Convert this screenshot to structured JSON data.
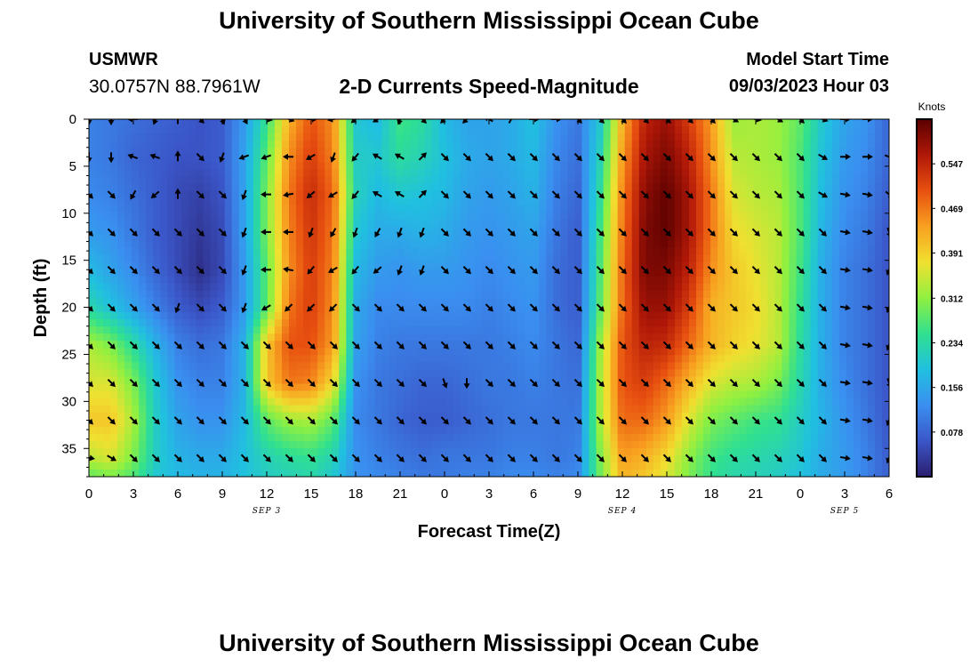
{
  "header": {
    "title": "University of Southern Mississippi Ocean Cube",
    "station": "USMWR",
    "coords": "30.0757N  88.7961W",
    "subtitle": "2-D Currents Speed-Magnitude",
    "start_label": "Model Start Time",
    "start_value": "09/03/2023 Hour 03"
  },
  "footer": {
    "title": "University of Southern Mississippi Ocean Cube"
  },
  "chart_data": {
    "type": "heatmap",
    "title": "2-D Currents Speed-Magnitude",
    "xlabel": "Forecast Time(Z)",
    "ylabel": "Depth (ft)",
    "x_range_hours": [
      0,
      54
    ],
    "x_ticks": [
      {
        "hour": 0,
        "label": "0"
      },
      {
        "hour": 3,
        "label": "3"
      },
      {
        "hour": 6,
        "label": "6"
      },
      {
        "hour": 9,
        "label": "9"
      },
      {
        "hour": 12,
        "label": "12"
      },
      {
        "hour": 15,
        "label": "15"
      },
      {
        "hour": 18,
        "label": "18"
      },
      {
        "hour": 21,
        "label": "21"
      },
      {
        "hour": 24,
        "label": "0"
      },
      {
        "hour": 27,
        "label": "3"
      },
      {
        "hour": 30,
        "label": "6"
      },
      {
        "hour": 33,
        "label": "9"
      },
      {
        "hour": 36,
        "label": "12"
      },
      {
        "hour": 39,
        "label": "15"
      },
      {
        "hour": 42,
        "label": "18"
      },
      {
        "hour": 45,
        "label": "21"
      },
      {
        "hour": 48,
        "label": "0"
      },
      {
        "hour": 51,
        "label": "3"
      },
      {
        "hour": 54,
        "label": "6"
      }
    ],
    "date_labels": [
      {
        "hour": 12,
        "label": "SEP 3"
      },
      {
        "hour": 36,
        "label": "SEP 4"
      },
      {
        "hour": 51,
        "label": "SEP 5"
      }
    ],
    "y_range": [
      0,
      38
    ],
    "y_ticks": [
      0,
      5,
      10,
      15,
      20,
      25,
      30,
      35
    ],
    "colorbar": {
      "unit": "Knots",
      "range": [
        0.0,
        0.625
      ],
      "ticks": [
        "0.078",
        "0.156",
        "0.234",
        "0.312",
        "0.391",
        "0.469",
        "0.547"
      ],
      "colors": [
        "#2a1e6e",
        "#3b56c8",
        "#3a8ff0",
        "#20c0e0",
        "#30e090",
        "#90f040",
        "#f0e030",
        "#f8a020",
        "#e85010",
        "#b01808",
        "#5a0000"
      ]
    },
    "vector_hours": [
      0,
      3,
      6,
      9,
      12,
      15,
      18,
      21,
      24,
      27,
      30,
      33,
      36,
      39,
      42,
      45,
      48,
      51,
      54
    ],
    "vector_depths": [
      0,
      4,
      8,
      12,
      16,
      20,
      24,
      28,
      32,
      36
    ],
    "anchor_hours": [
      0,
      1.5,
      3,
      4.5,
      6,
      7.5,
      9,
      10.5,
      12,
      13.5,
      15,
      16.5,
      18,
      19.5,
      21,
      22.5,
      24,
      25.5,
      27,
      28.5,
      30,
      31.5,
      33,
      34.5,
      36,
      37.5,
      39,
      40.5,
      42,
      43.5,
      45,
      46.5,
      48,
      49.5,
      51,
      52.5,
      54
    ],
    "anchor_depths": [
      0,
      4,
      8,
      12,
      16,
      20,
      24,
      28,
      32,
      36,
      38
    ],
    "speed_knots": [
      [
        0.11,
        0.1,
        0.09,
        0.08,
        0.07,
        0.06,
        0.07,
        0.14,
        0.25,
        0.42,
        0.5,
        0.45,
        0.2,
        0.18,
        0.26,
        0.24,
        0.18,
        0.15,
        0.15,
        0.16,
        0.19,
        0.13,
        0.1,
        0.2,
        0.42,
        0.55,
        0.58,
        0.52,
        0.44,
        0.32,
        0.33,
        0.32,
        0.28,
        0.2,
        0.15,
        0.13,
        0.08
      ],
      [
        0.11,
        0.1,
        0.08,
        0.07,
        0.06,
        0.06,
        0.07,
        0.15,
        0.28,
        0.45,
        0.52,
        0.46,
        0.21,
        0.2,
        0.24,
        0.22,
        0.19,
        0.16,
        0.15,
        0.16,
        0.18,
        0.12,
        0.09,
        0.22,
        0.44,
        0.57,
        0.6,
        0.55,
        0.45,
        0.34,
        0.33,
        0.32,
        0.27,
        0.19,
        0.14,
        0.12,
        0.08
      ],
      [
        0.12,
        0.11,
        0.09,
        0.07,
        0.05,
        0.04,
        0.06,
        0.15,
        0.3,
        0.47,
        0.54,
        0.48,
        0.22,
        0.18,
        0.2,
        0.19,
        0.18,
        0.15,
        0.14,
        0.15,
        0.17,
        0.11,
        0.08,
        0.24,
        0.46,
        0.59,
        0.62,
        0.57,
        0.47,
        0.36,
        0.34,
        0.33,
        0.27,
        0.18,
        0.13,
        0.11,
        0.07
      ],
      [
        0.14,
        0.13,
        0.1,
        0.07,
        0.05,
        0.03,
        0.05,
        0.15,
        0.3,
        0.46,
        0.53,
        0.47,
        0.2,
        0.16,
        0.16,
        0.17,
        0.16,
        0.14,
        0.13,
        0.14,
        0.15,
        0.1,
        0.07,
        0.26,
        0.47,
        0.6,
        0.62,
        0.57,
        0.47,
        0.38,
        0.36,
        0.34,
        0.27,
        0.17,
        0.12,
        0.1,
        0.06
      ],
      [
        0.18,
        0.15,
        0.12,
        0.08,
        0.05,
        0.02,
        0.05,
        0.14,
        0.28,
        0.45,
        0.52,
        0.46,
        0.18,
        0.14,
        0.13,
        0.14,
        0.14,
        0.13,
        0.12,
        0.13,
        0.14,
        0.09,
        0.07,
        0.27,
        0.48,
        0.6,
        0.6,
        0.55,
        0.45,
        0.4,
        0.37,
        0.34,
        0.26,
        0.16,
        0.11,
        0.09,
        0.06
      ],
      [
        0.23,
        0.19,
        0.15,
        0.11,
        0.07,
        0.05,
        0.07,
        0.14,
        0.28,
        0.47,
        0.52,
        0.45,
        0.16,
        0.12,
        0.12,
        0.12,
        0.12,
        0.12,
        0.11,
        0.12,
        0.13,
        0.09,
        0.07,
        0.28,
        0.48,
        0.58,
        0.58,
        0.52,
        0.42,
        0.4,
        0.38,
        0.34,
        0.25,
        0.16,
        0.11,
        0.09,
        0.06
      ],
      [
        0.33,
        0.3,
        0.24,
        0.17,
        0.11,
        0.09,
        0.1,
        0.17,
        0.4,
        0.5,
        0.5,
        0.44,
        0.15,
        0.11,
        0.1,
        0.1,
        0.1,
        0.1,
        0.1,
        0.11,
        0.12,
        0.1,
        0.08,
        0.32,
        0.5,
        0.55,
        0.54,
        0.48,
        0.42,
        0.39,
        0.37,
        0.34,
        0.24,
        0.16,
        0.11,
        0.09,
        0.06
      ],
      [
        0.36,
        0.36,
        0.3,
        0.2,
        0.13,
        0.11,
        0.11,
        0.17,
        0.4,
        0.47,
        0.46,
        0.38,
        0.13,
        0.1,
        0.09,
        0.08,
        0.08,
        0.09,
        0.1,
        0.1,
        0.11,
        0.1,
        0.09,
        0.33,
        0.5,
        0.52,
        0.48,
        0.42,
        0.36,
        0.34,
        0.33,
        0.3,
        0.23,
        0.16,
        0.12,
        0.09,
        0.06
      ],
      [
        0.4,
        0.4,
        0.33,
        0.21,
        0.15,
        0.13,
        0.13,
        0.18,
        0.28,
        0.32,
        0.33,
        0.28,
        0.12,
        0.1,
        0.08,
        0.07,
        0.07,
        0.08,
        0.09,
        0.1,
        0.1,
        0.1,
        0.1,
        0.33,
        0.48,
        0.48,
        0.44,
        0.36,
        0.3,
        0.28,
        0.26,
        0.25,
        0.21,
        0.17,
        0.13,
        0.1,
        0.06
      ],
      [
        0.34,
        0.36,
        0.3,
        0.21,
        0.17,
        0.16,
        0.16,
        0.19,
        0.22,
        0.24,
        0.25,
        0.22,
        0.13,
        0.11,
        0.1,
        0.09,
        0.1,
        0.1,
        0.1,
        0.11,
        0.11,
        0.1,
        0.11,
        0.3,
        0.44,
        0.42,
        0.38,
        0.31,
        0.26,
        0.24,
        0.23,
        0.22,
        0.2,
        0.16,
        0.14,
        0.11,
        0.07
      ],
      [
        0.28,
        0.3,
        0.27,
        0.2,
        0.18,
        0.17,
        0.17,
        0.19,
        0.21,
        0.22,
        0.23,
        0.2,
        0.13,
        0.12,
        0.11,
        0.1,
        0.1,
        0.11,
        0.11,
        0.12,
        0.12,
        0.11,
        0.12,
        0.29,
        0.42,
        0.4,
        0.36,
        0.3,
        0.25,
        0.23,
        0.22,
        0.21,
        0.19,
        0.16,
        0.14,
        0.11,
        0.07
      ]
    ],
    "vectors_deg": [
      [
        180,
        180,
        270,
        200,
        0,
        135,
        160,
        150,
        100,
        110,
        90,
        260,
        230,
        240,
        200,
        135,
        225,
        225,
        300,
        30,
        90,
        90,
        135,
        135,
        135,
        135,
        135,
        135,
        135,
        120,
        100,
        120,
        135,
        110,
        90,
        90,
        120
      ],
      [
        180,
        180,
        290,
        290,
        0,
        135,
        200,
        250,
        250,
        270,
        240,
        200,
        220,
        300,
        300,
        45,
        135,
        135,
        135,
        135,
        135,
        135,
        135,
        135,
        135,
        135,
        135,
        135,
        135,
        135,
        135,
        135,
        135,
        120,
        90,
        90,
        110
      ],
      [
        135,
        135,
        210,
        230,
        0,
        135,
        135,
        200,
        270,
        260,
        230,
        240,
        220,
        300,
        300,
        45,
        135,
        135,
        135,
        135,
        135,
        135,
        135,
        135,
        135,
        135,
        135,
        135,
        135,
        135,
        135,
        135,
        135,
        120,
        100,
        100,
        130
      ],
      [
        135,
        135,
        135,
        135,
        135,
        135,
        135,
        200,
        270,
        270,
        200,
        210,
        200,
        210,
        200,
        200,
        135,
        135,
        135,
        135,
        135,
        135,
        135,
        135,
        135,
        135,
        135,
        135,
        135,
        135,
        135,
        135,
        135,
        135,
        100,
        100,
        160
      ],
      [
        135,
        135,
        135,
        135,
        135,
        135,
        135,
        200,
        270,
        280,
        220,
        240,
        220,
        230,
        200,
        200,
        135,
        135,
        135,
        135,
        135,
        135,
        135,
        135,
        135,
        135,
        135,
        135,
        135,
        135,
        135,
        135,
        135,
        135,
        100,
        100,
        200
      ],
      [
        135,
        135,
        135,
        135,
        200,
        135,
        135,
        200,
        240,
        225,
        225,
        225,
        135,
        135,
        135,
        135,
        135,
        135,
        135,
        135,
        135,
        135,
        135,
        135,
        135,
        135,
        135,
        135,
        135,
        135,
        135,
        135,
        135,
        135,
        100,
        100,
        200
      ],
      [
        135,
        135,
        135,
        135,
        135,
        135,
        135,
        135,
        135,
        135,
        135,
        135,
        135,
        135,
        135,
        135,
        135,
        135,
        135,
        135,
        135,
        135,
        135,
        135,
        135,
        135,
        135,
        135,
        135,
        135,
        135,
        135,
        135,
        135,
        100,
        100,
        200
      ],
      [
        135,
        135,
        135,
        135,
        135,
        135,
        135,
        135,
        135,
        135,
        135,
        135,
        135,
        135,
        135,
        135,
        160,
        180,
        135,
        135,
        135,
        135,
        135,
        135,
        135,
        135,
        135,
        135,
        135,
        135,
        135,
        135,
        135,
        135,
        100,
        100,
        160
      ],
      [
        135,
        135,
        135,
        135,
        135,
        135,
        135,
        135,
        135,
        135,
        135,
        135,
        135,
        135,
        135,
        135,
        135,
        135,
        135,
        135,
        135,
        135,
        135,
        135,
        135,
        135,
        135,
        135,
        135,
        135,
        135,
        135,
        135,
        135,
        100,
        100,
        200
      ],
      [
        100,
        120,
        135,
        135,
        135,
        135,
        135,
        135,
        135,
        135,
        135,
        135,
        135,
        135,
        135,
        135,
        135,
        135,
        135,
        135,
        135,
        135,
        135,
        135,
        135,
        135,
        135,
        135,
        135,
        135,
        135,
        135,
        135,
        135,
        100,
        100,
        200
      ]
    ]
  }
}
